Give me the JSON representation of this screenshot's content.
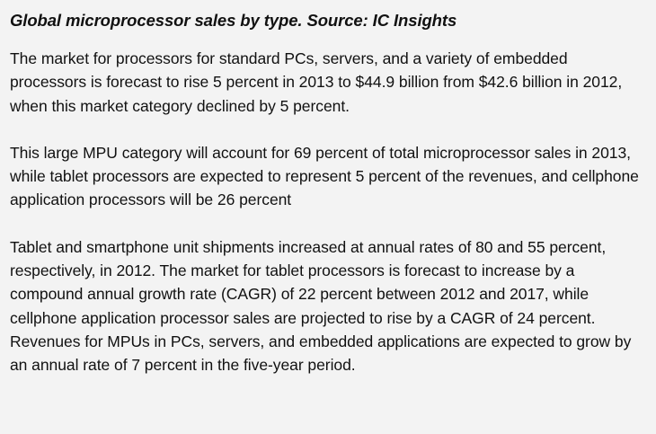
{
  "article": {
    "caption": "Global microprocessor sales by type. Source: IC Insights",
    "paragraphs": [
      "The market for processors for standard PCs, servers, and a variety of embedded processors is forecast to rise 5 percent in 2013 to $44.9 billion from $42.6 billion in 2012, when this market category declined by 5 percent.",
      "This large MPU category will account for 69 percent of total microprocessor sales in 2013, while tablet processors are expected to represent 5 percent of the revenues, and cellphone application processors will be 26 percent",
      "Tablet and smartphone unit shipments increased at annual rates of 80 and 55 percent, respectively, in 2012. The market for tablet processors is forecast to increase by a compound annual growth rate (CAGR) of 22 percent between 2012 and 2017, while cellphone application processor sales are projected to rise by a CAGR of 24 percent. Revenues for MPUs in PCs, servers, and embedded applications are expected to grow by an annual rate of 7 percent in the five-year period."
    ]
  }
}
